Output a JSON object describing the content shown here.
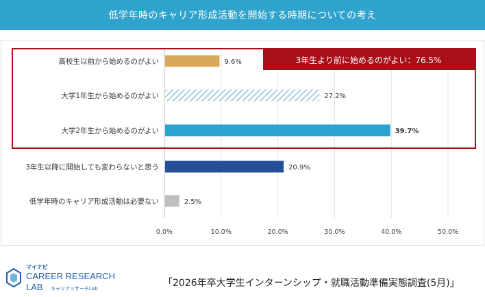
{
  "header": {
    "title": "低学年時のキャリア形成活動を開始する時期についての考え"
  },
  "chart_data": {
    "type": "bar",
    "orientation": "horizontal",
    "title": "低学年時のキャリア形成活動を開始する時期についての考え",
    "categories": [
      "高校生以前から始めるのがよい",
      "大学1年生から始めるのがよい",
      "大学2年生から始めるのがよい",
      "3年生以降に開始しても変わらないと思う",
      "低学年時のキャリア形成活動は必要ない"
    ],
    "values": [
      9.6,
      27.2,
      39.7,
      20.9,
      2.5
    ],
    "value_labels": [
      "9.6%",
      "27.2%",
      "39.7%",
      "20.9%",
      "2.5%"
    ],
    "bar_colors": [
      "#d9a85a",
      "#9fcfe0",
      "#2aa3cf",
      "#254f99",
      "#bfbfbf"
    ],
    "bar_styles": [
      "solid",
      "hatched",
      "solid",
      "solid",
      "solid"
    ],
    "highlight_label_color": "#c00000",
    "xlim": [
      0,
      50
    ],
    "xticks": [
      "0.0%",
      "10.0%",
      "20.0%",
      "30.0%",
      "40.0%",
      "50.0%"
    ],
    "annotation": {
      "text": "3年生より前に始めるのがよい：76.5%",
      "covers_categories": [
        0,
        1,
        2
      ],
      "color": "#a80f18"
    }
  },
  "footer": {
    "brand_small": "マイナビ",
    "brand_line1": "CAREER RESEARCH",
    "brand_line2": "LAB",
    "brand_sub": "キャリアリサーチLab",
    "survey_title": "「2026年卒大学生インターンシップ・就職活動準備実態調査(5月)」"
  },
  "colors": {
    "banner": "#2fa3cc",
    "brand_blue": "#1f5fa8",
    "accent_red": "#a80f18"
  }
}
